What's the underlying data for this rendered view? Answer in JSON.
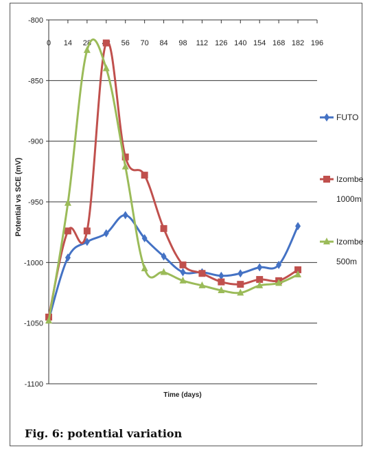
{
  "caption": "Fig. 6: potential variation",
  "chart_data": {
    "type": "line",
    "title": "",
    "xlabel": "Time (days)",
    "ylabel": "Potential vs SCE (mV)",
    "x_ticks": [
      0,
      14,
      28,
      42,
      56,
      70,
      84,
      98,
      112,
      126,
      140,
      154,
      168,
      182,
      196
    ],
    "y_ticks": [
      -800,
      -850,
      -900,
      -950,
      -1000,
      -1050,
      -1100
    ],
    "xlim": [
      0,
      196
    ],
    "ylim": [
      -1100,
      -800
    ],
    "x_axis_position": "top",
    "grid": true,
    "legend_position": "right",
    "series": [
      {
        "name": "FUTO",
        "color": "#4472C4",
        "marker": "diamond",
        "x": [
          0,
          14,
          28,
          42,
          56,
          70,
          84,
          98,
          112,
          126,
          140,
          154,
          168,
          182
        ],
        "y": [
          -1047,
          -996,
          -983,
          -976,
          -961,
          -980,
          -995,
          -1008,
          -1008,
          -1011,
          -1009,
          -1004,
          -1002,
          -970
        ]
      },
      {
        "name": "Izombe 1000m",
        "color": "#C0504D",
        "marker": "square",
        "x": [
          0,
          14,
          28,
          42,
          56,
          70,
          84,
          98,
          112,
          126,
          140,
          154,
          168,
          182
        ],
        "y": [
          -1045,
          -974,
          -974,
          -819,
          -913,
          -928,
          -972,
          -1002,
          -1009,
          -1016,
          -1018,
          -1014,
          -1015,
          -1006
        ]
      },
      {
        "name": "Izombe 500m",
        "color": "#9BBB59",
        "marker": "triangle",
        "x": [
          0,
          14,
          28,
          42,
          56,
          70,
          84,
          98,
          112,
          126,
          140,
          154,
          168,
          182
        ],
        "y": [
          -1048,
          -951,
          -825,
          -840,
          -921,
          -1005,
          -1008,
          -1015,
          -1019,
          -1023,
          -1025,
          -1019,
          -1017,
          -1010
        ]
      }
    ]
  }
}
